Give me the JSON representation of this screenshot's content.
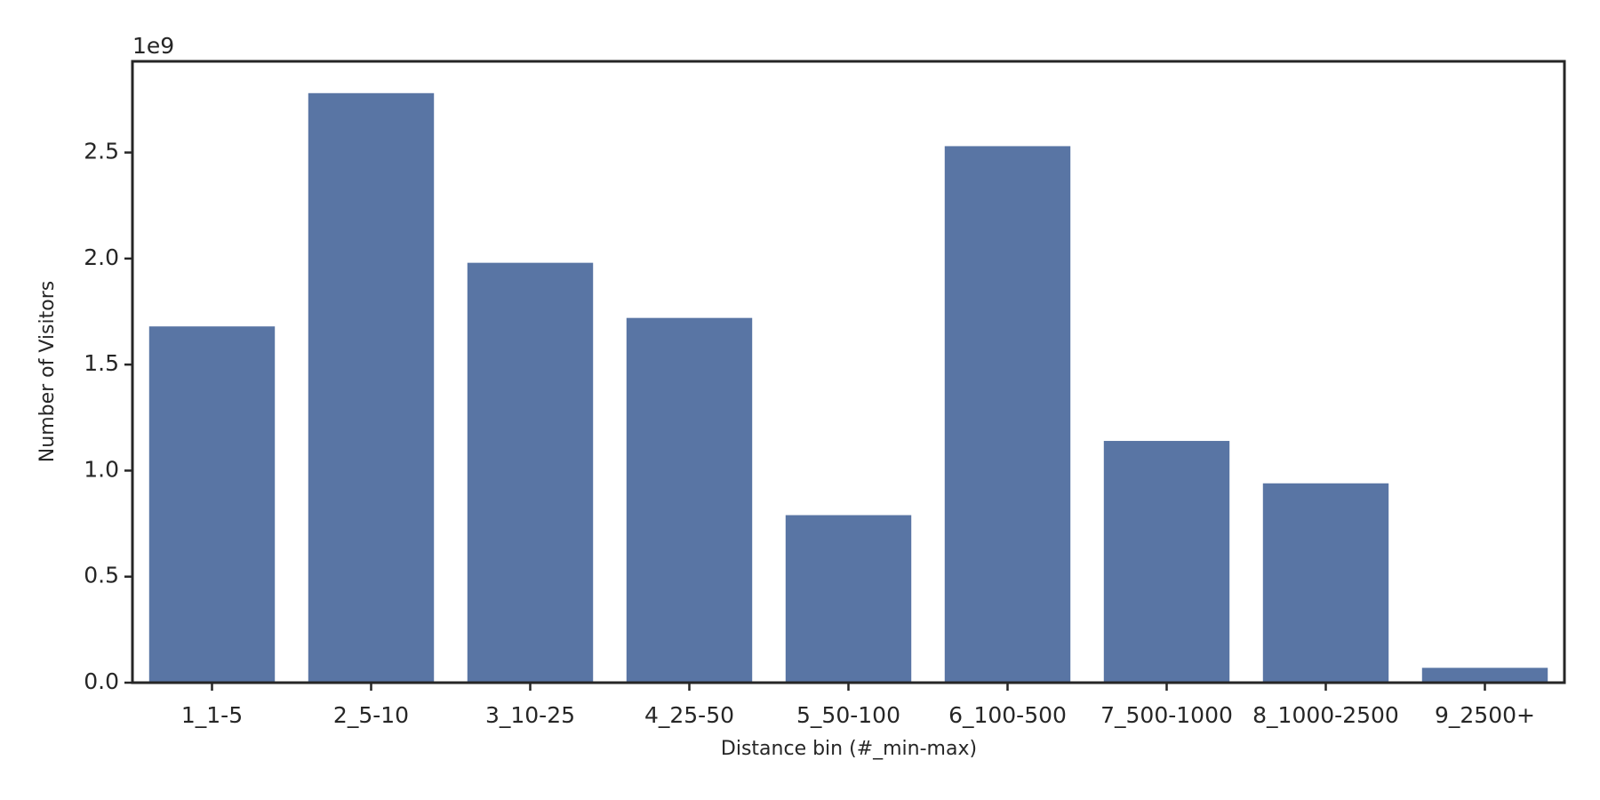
{
  "chart_data": {
    "type": "bar",
    "x_label": "Distance bin (#_min-max)",
    "y_label": "Number of Visitors",
    "y_offset_label": "1e9",
    "categories": [
      "1_1-5",
      "2_5-10",
      "3_10-25",
      "4_25-50",
      "5_50-100",
      "6_100-500",
      "7_500-1000",
      "8_1000-2500",
      "9_2500+"
    ],
    "values": [
      1.68,
      2.78,
      1.98,
      1.72,
      0.79,
      2.53,
      1.14,
      0.94,
      0.07
    ],
    "color": "#5975a4",
    "ylim": [
      0,
      2.93
    ],
    "yticks": [
      {
        "value": 0,
        "label": "0.0"
      },
      0.5,
      {
        "value": 1,
        "label": "1.0"
      },
      1.5,
      {
        "value": 2,
        "label": "2.0"
      },
      2.5
    ]
  }
}
